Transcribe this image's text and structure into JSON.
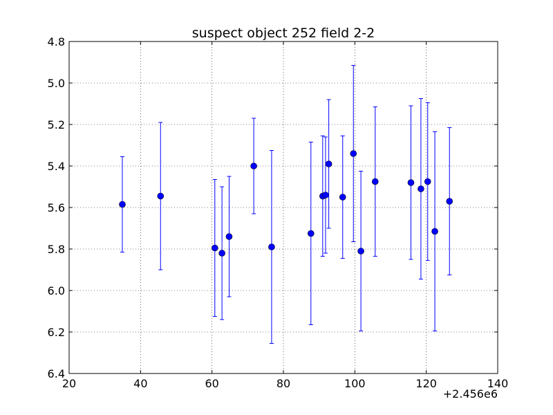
{
  "chart_data": {
    "type": "scatter",
    "title": "suspect object 252 field 2-2",
    "xlabel": "",
    "ylabel": "",
    "x_offset_label": "+2.456e6",
    "xlim": [
      20,
      140
    ],
    "ylim": [
      6.4,
      4.8
    ],
    "y_inverted": true,
    "grid": true,
    "x_ticks": [
      20,
      40,
      60,
      80,
      100,
      120,
      140
    ],
    "x_tick_labels": [
      "20",
      "40",
      "60",
      "80",
      "100",
      "120",
      "140"
    ],
    "y_ticks": [
      4.8,
      5.0,
      5.2,
      5.4,
      5.6,
      5.8,
      6.0,
      6.2,
      6.4
    ],
    "y_tick_labels": [
      "4.8",
      "5.0",
      "5.2",
      "5.4",
      "5.6",
      "5.8",
      "6.0",
      "6.2",
      "6.4"
    ],
    "series": [
      {
        "color": "#0000ff",
        "marker": "circle",
        "points": [
          {
            "x": 34.9,
            "y": 5.585,
            "err": 0.23
          },
          {
            "x": 45.6,
            "y": 5.545,
            "err": 0.355
          },
          {
            "x": 60.8,
            "y": 5.795,
            "err": 0.33
          },
          {
            "x": 62.8,
            "y": 5.82,
            "err": 0.32
          },
          {
            "x": 64.8,
            "y": 5.74,
            "err": 0.29
          },
          {
            "x": 71.7,
            "y": 5.4,
            "err": 0.23
          },
          {
            "x": 76.7,
            "y": 5.79,
            "err": 0.465
          },
          {
            "x": 87.7,
            "y": 5.725,
            "err": 0.44
          },
          {
            "x": 91.0,
            "y": 5.545,
            "err": 0.29
          },
          {
            "x": 91.8,
            "y": 5.54,
            "err": 0.28
          },
          {
            "x": 92.7,
            "y": 5.39,
            "err": 0.31
          },
          {
            "x": 96.6,
            "y": 5.55,
            "err": 0.295
          },
          {
            "x": 99.6,
            "y": 5.34,
            "err": 0.425
          },
          {
            "x": 101.7,
            "y": 5.81,
            "err": 0.385
          },
          {
            "x": 105.7,
            "y": 5.475,
            "err": 0.36
          },
          {
            "x": 115.7,
            "y": 5.48,
            "err": 0.37
          },
          {
            "x": 118.5,
            "y": 5.51,
            "err": 0.435
          },
          {
            "x": 120.4,
            "y": 5.475,
            "err": 0.38
          },
          {
            "x": 122.4,
            "y": 5.715,
            "err": 0.48
          },
          {
            "x": 126.5,
            "y": 5.57,
            "err": 0.355
          }
        ]
      }
    ]
  }
}
